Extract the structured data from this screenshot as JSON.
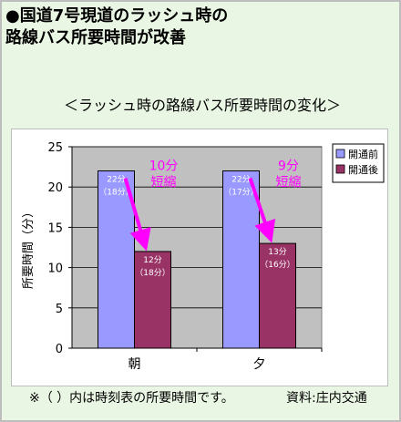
{
  "header": {
    "title_line1": "●国道7号現道のラッシュ時の",
    "title_line2": "路線バス所要時間が改善"
  },
  "chart_title": "＜ラッシュ時の路線バス所要時間の変化＞",
  "chart_data": {
    "type": "bar",
    "title": "＜ラッシュ時の路線バス所要時間の変化＞",
    "xlabel": "",
    "ylabel": "所要時間（分）",
    "ylim": [
      0,
      25
    ],
    "yticks": [
      "0",
      "5",
      "10",
      "15",
      "20",
      "25"
    ],
    "grid": true,
    "legend_position": "right",
    "categories": [
      "朝",
      "夕"
    ],
    "series": [
      {
        "name": "開通前",
        "color": "#9999ff",
        "values": [
          22,
          22
        ],
        "labels": [
          "22分",
          "22分"
        ],
        "sublabels": [
          "（18分）",
          "（17分）"
        ]
      },
      {
        "name": "開通後",
        "color": "#993366",
        "values": [
          12,
          13
        ],
        "labels": [
          "12分",
          "13分"
        ],
        "sublabels": [
          "（18分）",
          "（16分）"
        ]
      }
    ],
    "annotations": [
      {
        "category": "朝",
        "line1": "10分",
        "line2": "短縮"
      },
      {
        "category": "夕",
        "line1": "9分",
        "line2": "短縮"
      }
    ]
  },
  "colors": {
    "background": "#eaf6e4",
    "plot_area": "#c0c0c0",
    "annotation": "#ff00ff"
  },
  "footer": {
    "note": "※（ ）内は時刻表の所要時間です。",
    "source": "資料:庄内交通"
  }
}
